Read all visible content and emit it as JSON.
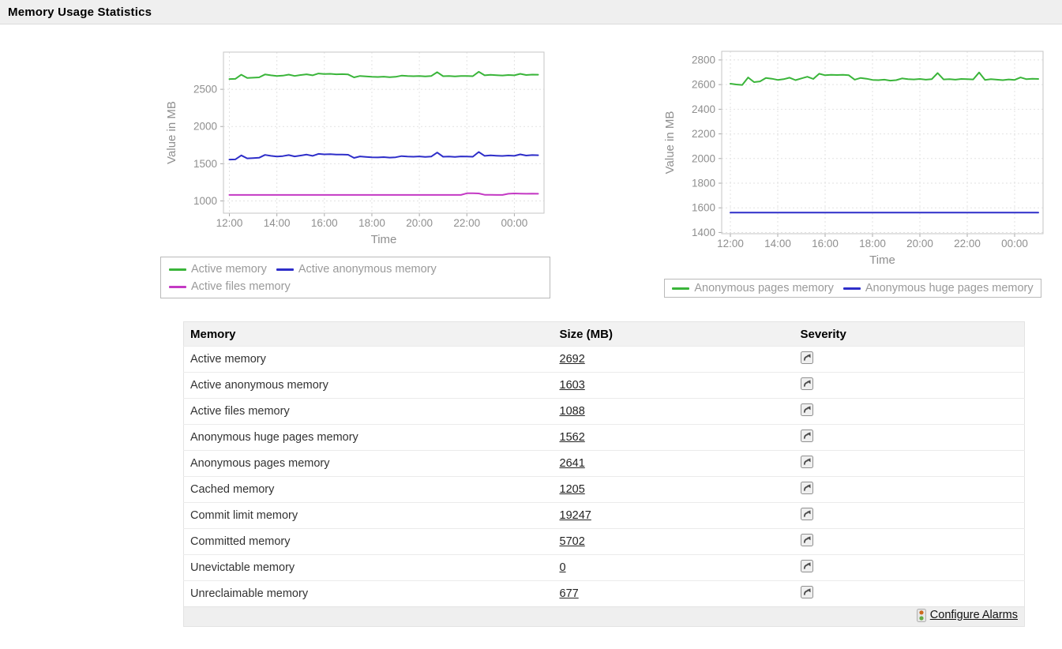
{
  "header": {
    "title": "Memory Usage Statistics"
  },
  "chart_data": [
    {
      "type": "line",
      "title": "",
      "xlabel": "Time",
      "ylabel": "Value in MB",
      "grid": true,
      "legend_position": "below",
      "xlim": [
        -15,
        795
      ],
      "ylim": [
        835,
        3000
      ],
      "yticks": [
        1000,
        1500,
        2000,
        2500
      ],
      "xticks": [
        {
          "v": 0,
          "label": "12:00"
        },
        {
          "v": 120,
          "label": "14:00"
        },
        {
          "v": 240,
          "label": "16:00"
        },
        {
          "v": 360,
          "label": "18:00"
        },
        {
          "v": 480,
          "label": "20:00"
        },
        {
          "v": 600,
          "label": "22:00"
        },
        {
          "v": 720,
          "label": "00:00"
        }
      ],
      "x_minutes_from_1200": [
        0,
        15,
        30,
        45,
        60,
        75,
        90,
        105,
        120,
        135,
        150,
        165,
        180,
        195,
        210,
        225,
        240,
        255,
        270,
        285,
        300,
        315,
        330,
        345,
        360,
        375,
        390,
        405,
        420,
        435,
        450,
        465,
        480,
        495,
        510,
        525,
        540,
        555,
        570,
        585,
        600,
        615,
        630,
        645,
        660,
        675,
        690,
        705,
        720,
        735,
        750,
        765,
        780
      ],
      "series": [
        {
          "name": "Active memory",
          "color": "#3ab53a",
          "values": [
            2638,
            2640,
            2696,
            2652,
            2656,
            2660,
            2700,
            2688,
            2678,
            2684,
            2698,
            2680,
            2692,
            2702,
            2688,
            2712,
            2706,
            2708,
            2702,
            2704,
            2700,
            2660,
            2680,
            2674,
            2668,
            2666,
            2670,
            2664,
            2668,
            2684,
            2678,
            2676,
            2680,
            2674,
            2678,
            2730,
            2676,
            2678,
            2674,
            2680,
            2678,
            2676,
            2736,
            2688,
            2694,
            2690,
            2686,
            2692,
            2688,
            2708,
            2692,
            2698,
            2696
          ]
        },
        {
          "name": "Active anonymous memory",
          "color": "#2e2ec9",
          "values": [
            1556,
            1558,
            1612,
            1572,
            1576,
            1580,
            1618,
            1606,
            1596,
            1602,
            1616,
            1598,
            1610,
            1622,
            1606,
            1632,
            1626,
            1628,
            1622,
            1624,
            1620,
            1578,
            1598,
            1592,
            1586,
            1584,
            1588,
            1582,
            1586,
            1602,
            1596,
            1594,
            1598,
            1592,
            1596,
            1650,
            1594,
            1596,
            1592,
            1598,
            1596,
            1594,
            1658,
            1606,
            1612,
            1608,
            1604,
            1610,
            1606,
            1626,
            1610,
            1616,
            1614
          ]
        },
        {
          "name": "Active files memory",
          "color": "#c439c4",
          "values": [
            1080,
            1080,
            1080,
            1080,
            1080,
            1080,
            1080,
            1080,
            1080,
            1080,
            1080,
            1080,
            1080,
            1080,
            1080,
            1080,
            1080,
            1080,
            1080,
            1080,
            1080,
            1080,
            1080,
            1080,
            1080,
            1080,
            1080,
            1080,
            1080,
            1080,
            1080,
            1080,
            1080,
            1080,
            1080,
            1080,
            1080,
            1080,
            1080,
            1080,
            1102,
            1102,
            1100,
            1082,
            1082,
            1080,
            1080,
            1096,
            1100,
            1098,
            1096,
            1098,
            1096
          ]
        }
      ]
    },
    {
      "type": "line",
      "title": "",
      "xlabel": "Time",
      "ylabel": "Value in MB",
      "grid": true,
      "legend_position": "below",
      "xlim": [
        -22,
        792
      ],
      "ylim": [
        1390,
        2870
      ],
      "yticks": [
        1400,
        1600,
        1800,
        2000,
        2200,
        2400,
        2600,
        2800
      ],
      "xticks": [
        {
          "v": 0,
          "label": "12:00"
        },
        {
          "v": 120,
          "label": "14:00"
        },
        {
          "v": 240,
          "label": "16:00"
        },
        {
          "v": 360,
          "label": "18:00"
        },
        {
          "v": 480,
          "label": "20:00"
        },
        {
          "v": 600,
          "label": "22:00"
        },
        {
          "v": 720,
          "label": "00:00"
        }
      ],
      "x_minutes_from_1200": [
        0,
        15,
        30,
        45,
        60,
        75,
        90,
        105,
        120,
        135,
        150,
        165,
        180,
        195,
        210,
        225,
        240,
        255,
        270,
        285,
        300,
        315,
        330,
        345,
        360,
        375,
        390,
        405,
        420,
        435,
        450,
        465,
        480,
        495,
        510,
        525,
        540,
        555,
        570,
        585,
        600,
        615,
        630,
        645,
        660,
        675,
        690,
        705,
        720,
        735,
        750,
        765,
        780
      ],
      "series": [
        {
          "name": "Anonymous pages memory",
          "color": "#3ab53a",
          "values": [
            2607,
            2601,
            2597,
            2658,
            2620,
            2626,
            2654,
            2648,
            2638,
            2644,
            2656,
            2636,
            2650,
            2664,
            2646,
            2688,
            2676,
            2680,
            2678,
            2680,
            2676,
            2640,
            2654,
            2648,
            2638,
            2636,
            2640,
            2632,
            2636,
            2650,
            2644,
            2642,
            2646,
            2640,
            2644,
            2694,
            2642,
            2644,
            2640,
            2646,
            2644,
            2642,
            2698,
            2638,
            2644,
            2640,
            2636,
            2642,
            2638,
            2658,
            2644,
            2648,
            2646
          ]
        },
        {
          "name": "Anonymous huge pages memory",
          "color": "#2e2ec9",
          "values": [
            1562,
            1562,
            1562,
            1562,
            1562,
            1562,
            1562,
            1562,
            1562,
            1562,
            1562,
            1562,
            1562,
            1562,
            1562,
            1562,
            1562,
            1562,
            1562,
            1562,
            1562,
            1562,
            1562,
            1562,
            1562,
            1562,
            1562,
            1562,
            1562,
            1562,
            1562,
            1562,
            1562,
            1562,
            1562,
            1562,
            1562,
            1562,
            1562,
            1562,
            1562,
            1562,
            1562,
            1562,
            1562,
            1562,
            1562,
            1562,
            1562,
            1562,
            1562,
            1562,
            1562
          ]
        }
      ]
    }
  ],
  "table": {
    "columns": [
      "Memory",
      "Size (MB)",
      "Severity"
    ],
    "severity_icon": "arrow-up-right-icon",
    "rows": [
      {
        "memory": "Active memory",
        "size": "2692"
      },
      {
        "memory": "Active anonymous memory",
        "size": "1603"
      },
      {
        "memory": "Active files memory",
        "size": "1088"
      },
      {
        "memory": "Anonymous huge pages memory",
        "size": "1562"
      },
      {
        "memory": "Anonymous pages memory",
        "size": "2641"
      },
      {
        "memory": "Cached memory",
        "size": "1205"
      },
      {
        "memory": "Commit limit memory",
        "size": "19247"
      },
      {
        "memory": "Committed memory",
        "size": "5702"
      },
      {
        "memory": "Unevictable memory",
        "size": "0"
      },
      {
        "memory": "Unreclaimable memory",
        "size": "677"
      }
    ]
  },
  "footer": {
    "configure_alarms_label": "Configure Alarms",
    "traffic_light_colors": {
      "top": "#cc6a1e",
      "bottom": "#66aa44"
    }
  }
}
